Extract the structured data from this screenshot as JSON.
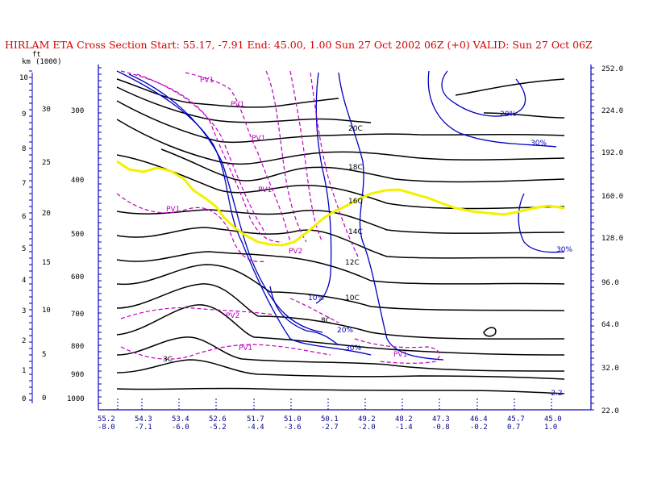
{
  "title": "HIRLAM ETA Cross Section Start:  55.17,  -7.91 End:  45.00,   1.00 Sun 27 Oct 2002 06Z  (+0) VALID: Sun 27 Oct 06Z",
  "colors": {
    "title": "#d40000",
    "isotherm": "#000000",
    "humidity": "#0000c0",
    "pv": "#c000c0",
    "tropopause": "#f2f200",
    "axis": "#0000c0"
  },
  "left_axis": {
    "km_unit": "km",
    "kft_unit": "(1000)",
    "ft_unit": "ft",
    "km_ticks": [
      "10",
      "9",
      "8",
      "7",
      "6",
      "5",
      "4",
      "3",
      "2",
      "1",
      "0"
    ],
    "kft_ticks": [
      "30",
      "25",
      "20",
      "15",
      "10",
      "5",
      "0"
    ],
    "pressure_ticks": [
      "300",
      "400",
      "500",
      "600",
      "700",
      "800",
      "900",
      "1000"
    ]
  },
  "right_axis": {
    "ticks": [
      "252.0",
      "224.0",
      "192.0",
      "160.0",
      "128.0",
      "96.0",
      "64.0",
      "32.0",
      "22.0"
    ]
  },
  "bottom_axis": {
    "labels": [
      {
        "lat": "55.2",
        "lon": "-8.0"
      },
      {
        "lat": "54.3",
        "lon": "-7.1"
      },
      {
        "lat": "53.4",
        "lon": "-6.0"
      },
      {
        "lat": "52.6",
        "lon": "-5.2"
      },
      {
        "lat": "51.7",
        "lon": "-4.4"
      },
      {
        "lat": "51.0",
        "lon": "-3.6"
      },
      {
        "lat": "50.1",
        "lon": "-2.7"
      },
      {
        "lat": "49.2",
        "lon": "-2.0"
      },
      {
        "lat": "48.2",
        "lon": "-1.4"
      },
      {
        "lat": "47.3",
        "lon": "-0.8"
      },
      {
        "lat": "46.4",
        "lon": "-0.2"
      },
      {
        "lat": "45.7",
        "lon": "0.7"
      },
      {
        "lat": "45.0",
        "lon": "1.0"
      }
    ]
  },
  "annotations": {
    "isotherms": [
      "20C",
      "18C",
      "16C",
      "14C",
      "12C",
      "10C",
      "8C"
    ],
    "humidity": [
      "20%",
      "30%",
      "30%",
      "10%",
      "20%",
      "30%"
    ],
    "pv": [
      "PV1",
      "PV1",
      "PV1",
      "PV1",
      "PV1",
      "PV1",
      "PV2",
      "PV2",
      "PV1"
    ],
    "other": [
      "3C",
      "-2.2"
    ]
  }
}
